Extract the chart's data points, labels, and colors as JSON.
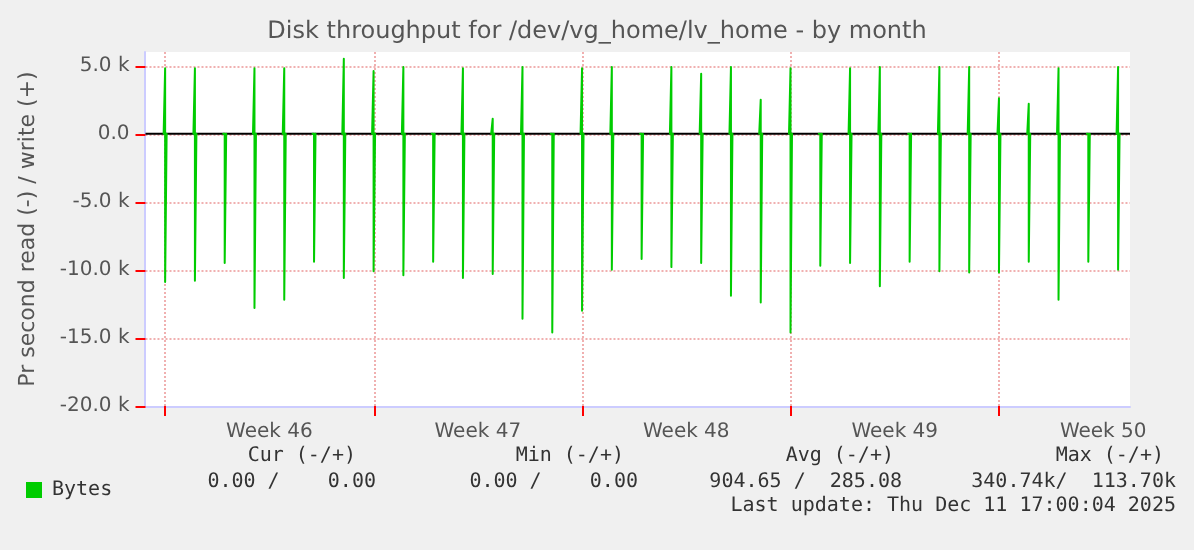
{
  "chart_data": {
    "type": "line",
    "title": "Disk throughput for /dev/vg_home/lv_home - by month",
    "ylabel": "Pr second read (-) / write (+)",
    "x": [
      "2025-11-09T22:48",
      "2025-11-10T00:00",
      "2025-11-10T00:00",
      "2025-11-10T01:12",
      "2025-11-10T12:00",
      "2025-11-10T22:48",
      "2025-11-11T00:00",
      "2025-11-11T00:00",
      "2025-11-11T01:12",
      "2025-11-11T12:00",
      "2025-11-11T22:48",
      "2025-11-12T00:00",
      "2025-11-12T00:00",
      "2025-11-12T01:12",
      "2025-11-12T12:00",
      "2025-11-12T22:48",
      "2025-11-13T00:00",
      "2025-11-13T00:00",
      "2025-11-13T01:12",
      "2025-11-13T12:00",
      "2025-11-13T22:48",
      "2025-11-14T00:00",
      "2025-11-14T00:00",
      "2025-11-14T01:12",
      "2025-11-14T12:00",
      "2025-11-14T22:48",
      "2025-11-15T00:00",
      "2025-11-15T00:00",
      "2025-11-15T01:12",
      "2025-11-15T12:00",
      "2025-11-15T22:48",
      "2025-11-16T00:00",
      "2025-11-16T00:00",
      "2025-11-16T01:12",
      "2025-11-16T12:00",
      "2025-11-16T22:48",
      "2025-11-17T00:00",
      "2025-11-17T00:00",
      "2025-11-17T01:12",
      "2025-11-17T12:00",
      "2025-11-17T22:48",
      "2025-11-18T00:00",
      "2025-11-18T00:00",
      "2025-11-18T01:12",
      "2025-11-18T12:00",
      "2025-11-18T22:48",
      "2025-11-19T00:00",
      "2025-11-19T00:00",
      "2025-11-19T01:12",
      "2025-11-19T12:00",
      "2025-11-19T22:48",
      "2025-11-20T00:00",
      "2025-11-20T00:00",
      "2025-11-20T01:12",
      "2025-11-20T12:00",
      "2025-11-20T22:48",
      "2025-11-21T00:00",
      "2025-11-21T00:00",
      "2025-11-21T01:12",
      "2025-11-21T12:00",
      "2025-11-21T22:48",
      "2025-11-22T00:00",
      "2025-11-22T00:00",
      "2025-11-22T01:12",
      "2025-11-22T12:00",
      "2025-11-22T22:48",
      "2025-11-23T00:00",
      "2025-11-23T00:00",
      "2025-11-23T01:12",
      "2025-11-23T12:00",
      "2025-11-23T22:48",
      "2025-11-24T00:00",
      "2025-11-24T00:00",
      "2025-11-24T01:12",
      "2025-11-24T12:00",
      "2025-11-24T22:48",
      "2025-11-25T00:00",
      "2025-11-25T00:00",
      "2025-11-25T01:12",
      "2025-11-25T12:00",
      "2025-11-25T22:48",
      "2025-11-26T00:00",
      "2025-11-26T00:00",
      "2025-11-26T01:12",
      "2025-11-26T12:00",
      "2025-11-26T22:48",
      "2025-11-27T00:00",
      "2025-11-27T00:00",
      "2025-11-27T01:12",
      "2025-11-27T12:00",
      "2025-11-27T22:48",
      "2025-11-28T00:00",
      "2025-11-28T00:00",
      "2025-11-28T01:12",
      "2025-11-28T12:00",
      "2025-11-28T22:48",
      "2025-11-29T00:00",
      "2025-11-29T00:00",
      "2025-11-29T01:12",
      "2025-11-29T12:00",
      "2025-11-29T22:48",
      "2025-11-30T00:00",
      "2025-11-30T00:00",
      "2025-11-30T01:12",
      "2025-11-30T12:00",
      "2025-11-30T22:48",
      "2025-12-01T00:00",
      "2025-12-01T00:00",
      "2025-12-01T01:12",
      "2025-12-01T12:00",
      "2025-12-01T22:48",
      "2025-12-02T00:00",
      "2025-12-02T00:00",
      "2025-12-02T01:12",
      "2025-12-02T12:00",
      "2025-12-02T22:48",
      "2025-12-03T00:00",
      "2025-12-03T00:00",
      "2025-12-03T01:12",
      "2025-12-03T12:00",
      "2025-12-03T22:48",
      "2025-12-04T00:00",
      "2025-12-04T00:00",
      "2025-12-04T01:12",
      "2025-12-04T12:00",
      "2025-12-04T22:48",
      "2025-12-05T00:00",
      "2025-12-05T00:00",
      "2025-12-05T01:12",
      "2025-12-05T12:00",
      "2025-12-05T22:48",
      "2025-12-06T00:00",
      "2025-12-06T00:00",
      "2025-12-06T01:12",
      "2025-12-06T12:00",
      "2025-12-06T22:48",
      "2025-12-07T00:00",
      "2025-12-07T00:00",
      "2025-12-07T01:12",
      "2025-12-07T12:00",
      "2025-12-07T22:48",
      "2025-12-08T00:00",
      "2025-12-08T00:00",
      "2025-12-08T01:12",
      "2025-12-08T12:00",
      "2025-12-08T22:48",
      "2025-12-09T00:00",
      "2025-12-09T00:00",
      "2025-12-09T01:12",
      "2025-12-09T12:00",
      "2025-12-09T22:48",
      "2025-12-10T00:00",
      "2025-12-10T00:00",
      "2025-12-10T01:12",
      "2025-12-10T12:00",
      "2025-12-10T22:48",
      "2025-12-11T00:00",
      "2025-12-11T00:00",
      "2025-12-11T01:12",
      "2025-12-11T12:00",
      "2025-12-11T22:48",
      "2025-12-12T00:00",
      "2025-12-12T00:00",
      "2025-12-12T01:12"
    ],
    "series": [
      {
        "name": "Bytes",
        "color": "#00cc00",
        "values": [
          0,
          4800,
          -10900,
          0,
          null,
          0,
          4800,
          -10800,
          0,
          null,
          0,
          0,
          -9500,
          0,
          null,
          0,
          4800,
          -12800,
          0,
          null,
          0,
          4800,
          -12200,
          0,
          null,
          0,
          0,
          -9400,
          0,
          null,
          0,
          5500,
          -10600,
          0,
          null,
          0,
          4600,
          -10100,
          0,
          null,
          0,
          4900,
          -10400,
          0,
          null,
          0,
          0,
          -9400,
          0,
          null,
          0,
          4800,
          -10600,
          0,
          null,
          0,
          1100,
          -10300,
          0,
          null,
          0,
          4900,
          -13600,
          0,
          null,
          0,
          0,
          -14600,
          0,
          null,
          0,
          4800,
          -13000,
          0,
          null,
          0,
          4900,
          -10000,
          0,
          null,
          0,
          0,
          -9200,
          0,
          null,
          0,
          4900,
          -9800,
          0,
          null,
          0,
          4400,
          -9500,
          0,
          null,
          0,
          4900,
          -11900,
          0,
          null,
          0,
          2500,
          -12400,
          0,
          null,
          0,
          4800,
          -14600,
          0,
          null,
          0,
          0,
          -9700,
          0,
          null,
          0,
          4800,
          -9500,
          0,
          null,
          0,
          4900,
          -11200,
          0,
          null,
          0,
          0,
          -9400,
          0,
          null,
          0,
          4900,
          -10100,
          0,
          null,
          0,
          4900,
          -10200,
          0,
          null,
          0,
          2600,
          -10200,
          0,
          null,
          0,
          2200,
          -9400,
          0,
          null,
          0,
          4800,
          -12200,
          0,
          null,
          0,
          0,
          -9400,
          0,
          null,
          0,
          4900,
          -10000,
          0
        ]
      }
    ],
    "xlim": [
      "2025-11-09T08:10",
      "2025-12-12T09:36"
    ],
    "xticks": [
      {
        "value": "2025-11-10",
        "label": null
      },
      {
        "value": "2025-11-13T12:00",
        "label": "Week 46"
      },
      {
        "value": "2025-11-17",
        "label": null
      },
      {
        "value": "2025-11-20T12:00",
        "label": "Week 47"
      },
      {
        "value": "2025-11-24",
        "label": null
      },
      {
        "value": "2025-11-27T12:00",
        "label": "Week 48"
      },
      {
        "value": "2025-12-01",
        "label": null
      },
      {
        "value": "2025-12-04T12:00",
        "label": "Week 49"
      },
      {
        "value": "2025-12-08",
        "label": null
      },
      {
        "value": "2025-12-11T12:00",
        "label": "Week 50"
      }
    ],
    "ylim": [
      -20000,
      6000
    ],
    "yticks": [
      {
        "value": 5000,
        "label": "5.0 k"
      },
      {
        "value": 0,
        "label": "0.0"
      },
      {
        "value": -5000,
        "label": "-5.0 k"
      },
      {
        "value": -10000,
        "label": "-10.0 k"
      },
      {
        "value": -15000,
        "label": "-15.0 k"
      },
      {
        "value": -20000,
        "label": "-20.0 k"
      }
    ],
    "grid": true,
    "legend": "bottom left",
    "marker": "none",
    "line_style": "solid",
    "annotations": [
      "Cur (-/+)",
      "Min (-/+)",
      "Avg (-/+)",
      "Max (-/+)",
      "0.00 /    0.00",
      "0.00 /    0.00",
      "904.65 /  285.08",
      "340.74k/  113.70k",
      "Last update: Thu Dec 11 17:00:04 2025"
    ]
  }
}
